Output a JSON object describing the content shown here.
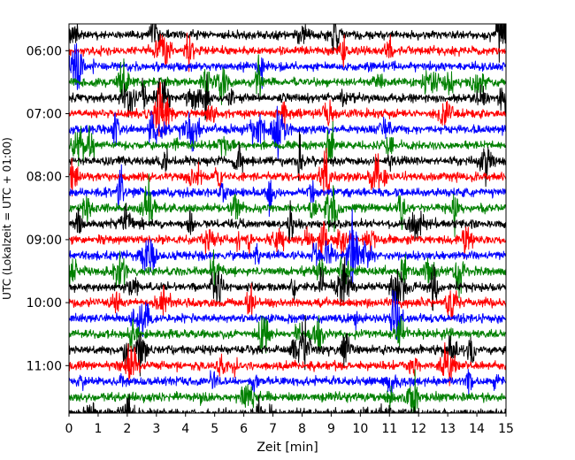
{
  "chart_data": {
    "type": "line",
    "title": "",
    "xlabel": "Zeit  [min]",
    "ylabel": "UTC (Lokalzeit = UTC + 01:00)",
    "xlim": [
      0,
      15
    ],
    "x_ticks": [
      0,
      1,
      2,
      3,
      4,
      5,
      6,
      7,
      8,
      9,
      10,
      11,
      12,
      13,
      14,
      15
    ],
    "y_tick_labels": [
      "06:00",
      "07:00",
      "08:00",
      "09:00",
      "10:00",
      "11:00"
    ],
    "trace_start": "05:45",
    "trace_end": "11:45",
    "trace_interval_min": 15,
    "trace_colors": [
      "#000000",
      "#ff0000",
      "#0000ff",
      "#008000"
    ],
    "grid": false,
    "legend": "none"
  }
}
